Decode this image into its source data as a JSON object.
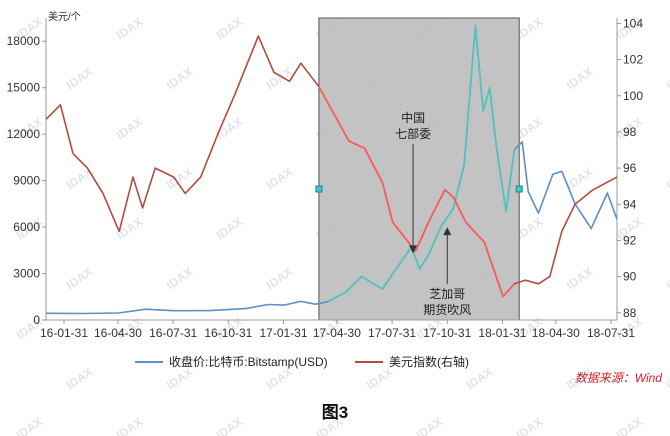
{
  "chart_data": {
    "type": "line",
    "y_left": {
      "label": "美元/个",
      "ticks": [
        0,
        3000,
        6000,
        9000,
        12000,
        15000,
        18000
      ],
      "range": [
        0,
        19500
      ]
    },
    "y_right": {
      "ticks": [
        88,
        90,
        92,
        94,
        96,
        98,
        100,
        102,
        104
      ],
      "range": [
        87.6,
        104.3
      ]
    },
    "x_range": [
      "2016-01-01",
      "2018-08-10"
    ],
    "x_ticks": [
      {
        "date": "2016-01-31",
        "label": "16-01-31"
      },
      {
        "date": "2016-04-30",
        "label": "16-04-30"
      },
      {
        "date": "2016-07-31",
        "label": "16-07-31"
      },
      {
        "date": "2016-10-31",
        "label": "16-10-31"
      },
      {
        "date": "2017-01-31",
        "label": "17-01-31"
      },
      {
        "date": "2017-04-30",
        "label": "17-04-30"
      },
      {
        "date": "2017-07-31",
        "label": "17-07-31"
      },
      {
        "date": "2017-10-31",
        "label": "17-10-31"
      },
      {
        "date": "2018-01-31",
        "label": "18-01-31"
      },
      {
        "date": "2018-04-30",
        "label": "18-04-30"
      },
      {
        "date": "2018-07-31",
        "label": "18-07-31"
      }
    ],
    "highlight_range": [
      "2017-03-31",
      "2018-02-28"
    ],
    "series": [
      {
        "name": "收盘价:比特币:Bitstamp(USD)",
        "axis": "left",
        "color": "#5b8fc9",
        "highlight_color": "#4ec6c0",
        "points": [
          [
            "2016-01-01",
            430
          ],
          [
            "2016-03-01",
            420
          ],
          [
            "2016-05-01",
            450
          ],
          [
            "2016-06-15",
            700
          ],
          [
            "2016-08-01",
            600
          ],
          [
            "2016-10-01",
            610
          ],
          [
            "2016-12-01",
            750
          ],
          [
            "2017-01-05",
            1000
          ],
          [
            "2017-02-01",
            960
          ],
          [
            "2017-03-01",
            1200
          ],
          [
            "2017-03-25",
            1020
          ],
          [
            "2017-04-15",
            1180
          ],
          [
            "2017-05-15",
            1800
          ],
          [
            "2017-06-10",
            2800
          ],
          [
            "2017-07-15",
            2000
          ],
          [
            "2017-08-05",
            3200
          ],
          [
            "2017-09-01",
            4700
          ],
          [
            "2017-09-15",
            3300
          ],
          [
            "2017-10-01",
            4300
          ],
          [
            "2017-10-20",
            6000
          ],
          [
            "2017-11-10",
            7200
          ],
          [
            "2017-11-28",
            10000
          ],
          [
            "2017-12-17",
            19000
          ],
          [
            "2017-12-30",
            13500
          ],
          [
            "2018-01-10",
            15000
          ],
          [
            "2018-01-20",
            11500
          ],
          [
            "2018-02-06",
            7000
          ],
          [
            "2018-02-20",
            11000
          ],
          [
            "2018-03-05",
            11500
          ],
          [
            "2018-03-15",
            8300
          ],
          [
            "2018-04-01",
            6900
          ],
          [
            "2018-04-25",
            9400
          ],
          [
            "2018-05-10",
            9600
          ],
          [
            "2018-06-01",
            7500
          ],
          [
            "2018-06-28",
            5900
          ],
          [
            "2018-07-25",
            8200
          ],
          [
            "2018-08-10",
            6500
          ]
        ]
      },
      {
        "name": "美元指数(右轴)",
        "axis": "right",
        "color": "#b54a3e",
        "highlight_color": "#ff5a5a",
        "points": [
          [
            "2016-01-01",
            98.7
          ],
          [
            "2016-01-25",
            99.5
          ],
          [
            "2016-02-15",
            96.8
          ],
          [
            "2016-03-10",
            96.0
          ],
          [
            "2016-04-05",
            94.6
          ],
          [
            "2016-05-02",
            92.5
          ],
          [
            "2016-05-25",
            95.5
          ],
          [
            "2016-06-10",
            93.8
          ],
          [
            "2016-07-01",
            96.0
          ],
          [
            "2016-08-01",
            95.5
          ],
          [
            "2016-08-20",
            94.6
          ],
          [
            "2016-09-15",
            95.5
          ],
          [
            "2016-10-15",
            98.0
          ],
          [
            "2016-11-10",
            100.0
          ],
          [
            "2016-12-20",
            103.3
          ],
          [
            "2017-01-15",
            101.3
          ],
          [
            "2017-02-10",
            100.8
          ],
          [
            "2017-03-01",
            101.8
          ],
          [
            "2017-03-31",
            100.5
          ],
          [
            "2017-04-25",
            99.0
          ],
          [
            "2017-05-20",
            97.5
          ],
          [
            "2017-06-15",
            97.1
          ],
          [
            "2017-07-15",
            95.2
          ],
          [
            "2017-08-01",
            93.0
          ],
          [
            "2017-09-08",
            91.4
          ],
          [
            "2017-10-01",
            93.1
          ],
          [
            "2017-10-27",
            94.8
          ],
          [
            "2017-11-10",
            94.4
          ],
          [
            "2017-12-01",
            93.0
          ],
          [
            "2018-01-01",
            91.9
          ],
          [
            "2018-02-01",
            88.9
          ],
          [
            "2018-02-20",
            89.6
          ],
          [
            "2018-03-10",
            89.8
          ],
          [
            "2018-04-01",
            89.6
          ],
          [
            "2018-04-20",
            90.0
          ],
          [
            "2018-05-10",
            92.5
          ],
          [
            "2018-06-01",
            94.0
          ],
          [
            "2018-07-01",
            94.8
          ],
          [
            "2018-08-10",
            95.5
          ]
        ]
      }
    ],
    "annotations": [
      {
        "text_lines": [
          "中国",
          "七部委"
        ],
        "date": "2017-09-04",
        "value": 4300
      },
      {
        "text_lines": [
          "芝加哥",
          "期货吹风"
        ],
        "date": "2017-10-31",
        "value": 6000
      }
    ],
    "legend_placement": "bottom"
  },
  "source": "数据来源：Wind",
  "caption": "图3",
  "watermark": "IDAX"
}
